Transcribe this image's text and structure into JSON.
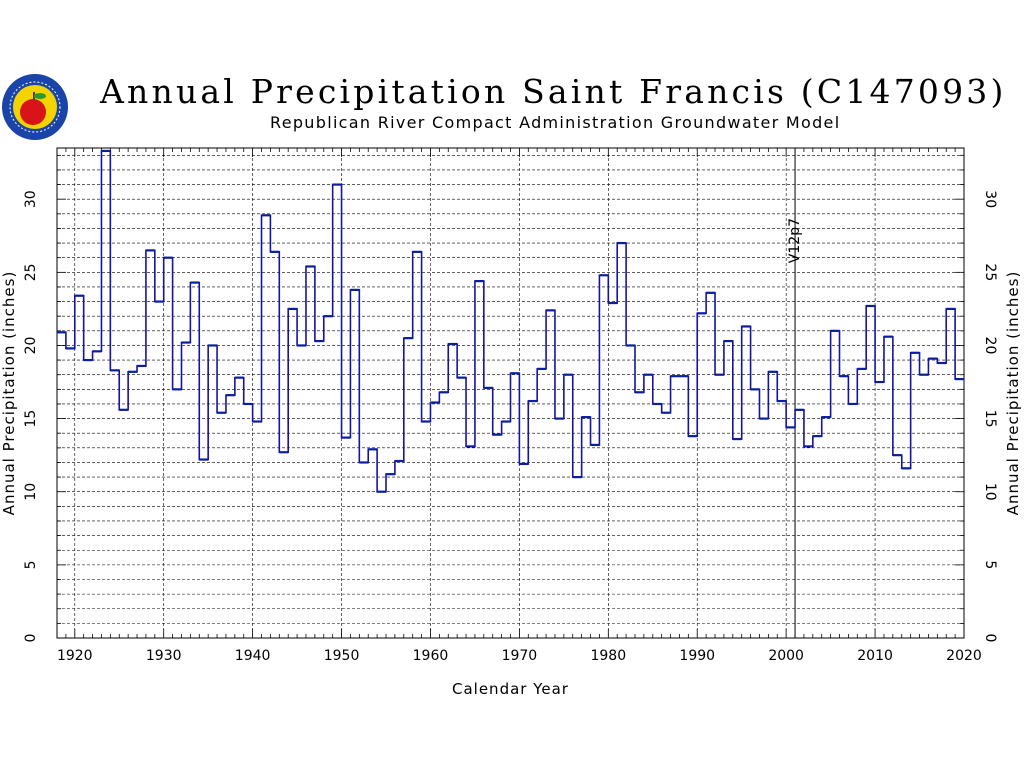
{
  "header": {
    "title": "Annual Precipitation Saint Francis (C147093)",
    "subtitle": "Republican River Compact Administration Groundwater Model",
    "logo_icon": "apple-seal-logo-icon",
    "logo_colors": {
      "ring": "#1a44a8",
      "inner": "#f3d400",
      "apple": "#d8141a",
      "leaf": "#2a9a2a"
    }
  },
  "chart_data": {
    "type": "line",
    "style": "step",
    "title": "Annual Precipitation Saint Francis (C147093)",
    "subtitle": "Republican River Compact Administration Groundwater Model",
    "xlabel": "Calendar Year",
    "ylabel": "Annual Precipitation (inches)",
    "ylabel_right": "Annual Precipitation (inches)",
    "xlim": [
      1918,
      2020
    ],
    "ylim": [
      0,
      33.5
    ],
    "xticks": [
      1920,
      1930,
      1940,
      1950,
      1960,
      1970,
      1980,
      1990,
      2000,
      2010,
      2020
    ],
    "yticks": [
      0,
      5,
      10,
      15,
      20,
      25,
      30
    ],
    "grid": true,
    "vline": {
      "x": 2001,
      "label": "V12p7"
    },
    "series_colors": {
      "pre": "#1414a0",
      "post": "#0a1e9e"
    },
    "years": [
      1918,
      1919,
      1920,
      1921,
      1922,
      1923,
      1924,
      1925,
      1926,
      1927,
      1928,
      1929,
      1930,
      1931,
      1932,
      1933,
      1934,
      1935,
      1936,
      1937,
      1938,
      1939,
      1940,
      1941,
      1942,
      1943,
      1944,
      1945,
      1946,
      1947,
      1948,
      1949,
      1950,
      1951,
      1952,
      1953,
      1954,
      1955,
      1956,
      1957,
      1958,
      1959,
      1960,
      1961,
      1962,
      1963,
      1964,
      1965,
      1966,
      1967,
      1968,
      1969,
      1970,
      1971,
      1972,
      1973,
      1974,
      1975,
      1976,
      1977,
      1978,
      1979,
      1980,
      1981,
      1982,
      1983,
      1984,
      1985,
      1986,
      1987,
      1988,
      1989,
      1990,
      1991,
      1992,
      1993,
      1994,
      1995,
      1996,
      1997,
      1998,
      1999,
      2000,
      2001,
      2002,
      2003,
      2004,
      2005,
      2006,
      2007,
      2008,
      2009,
      2010,
      2011,
      2012,
      2013,
      2014,
      2015,
      2016,
      2017,
      2018,
      2019
    ],
    "values": [
      20.9,
      19.8,
      23.4,
      19.0,
      19.6,
      33.3,
      18.3,
      15.6,
      18.2,
      18.6,
      26.5,
      23.0,
      26.0,
      17.0,
      20.2,
      24.3,
      12.2,
      20.0,
      15.4,
      16.6,
      17.8,
      16.0,
      14.8,
      28.9,
      26.4,
      12.7,
      22.5,
      20.0,
      25.4,
      20.3,
      22.0,
      31.0,
      13.7,
      23.8,
      12.0,
      12.9,
      10.0,
      11.2,
      12.1,
      20.5,
      26.4,
      14.8,
      16.1,
      16.8,
      20.1,
      17.8,
      13.1,
      24.4,
      17.1,
      13.9,
      14.8,
      18.1,
      11.9,
      16.2,
      18.4,
      22.4,
      15.0,
      18.0,
      11.0,
      15.1,
      13.2,
      24.8,
      22.9,
      27.0,
      20.0,
      16.8,
      18.0,
      16.0,
      15.4,
      17.9,
      17.9,
      13.8,
      22.2,
      23.6,
      18.0,
      20.3,
      13.6,
      21.3,
      17.0,
      15.0,
      18.2,
      16.2,
      14.4,
      15.6,
      13.1,
      13.8,
      15.1,
      21.0,
      17.9,
      16.0,
      18.4,
      22.7,
      17.5,
      20.6,
      12.5,
      11.6,
      19.5,
      18.0,
      19.1,
      18.8,
      22.5,
      17.7
    ]
  }
}
